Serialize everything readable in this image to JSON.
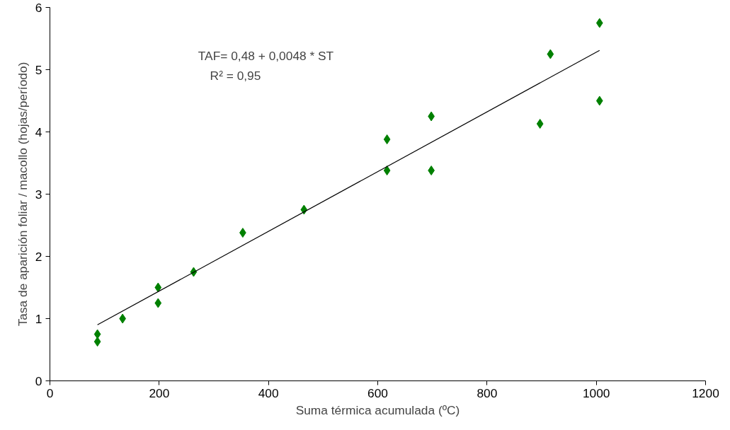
{
  "chart_data": {
    "type": "scatter",
    "xlabel": "Suma térmica acumulada (ºC)",
    "ylabel": "Tasa de aparición foliar / macollo (hojas/período)",
    "annotations": [
      "TAF= 0,48 + 0,0048 * ST",
      "R² = 0,95"
    ],
    "xlim": [
      0,
      1200
    ],
    "xticks": [
      0,
      200,
      400,
      600,
      800,
      1000,
      1200
    ],
    "ylim": [
      0,
      6
    ],
    "yticks": [
      0,
      1,
      2,
      3,
      4,
      5,
      6
    ],
    "grid": false,
    "series": [
      {
        "color": "#008000",
        "marker": "diamond",
        "x": [
          87,
          87,
          133,
          198,
          198,
          263,
          353,
          465,
          617,
          617,
          698,
          698,
          897,
          916,
          1006,
          1006
        ],
        "values": [
          0.75,
          0.63,
          1.0,
          1.5,
          1.25,
          1.75,
          2.38,
          2.75,
          3.88,
          3.38,
          4.25,
          3.38,
          4.13,
          5.25,
          5.75,
          4.5
        ]
      },
      {
        "type": "line",
        "color": "#000000",
        "x": [
          87,
          1006
        ],
        "values": [
          0.9,
          5.31
        ],
        "line_style": "solid"
      }
    ]
  }
}
